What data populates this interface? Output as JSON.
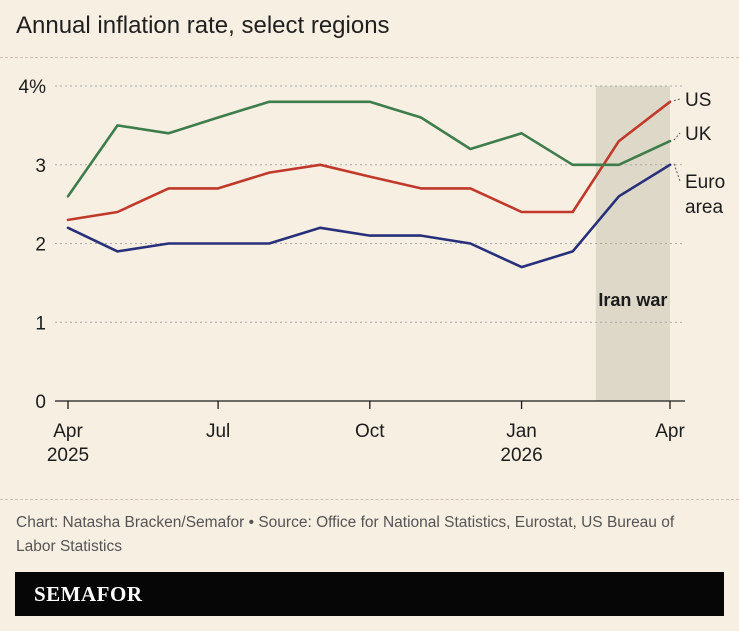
{
  "header": {
    "title": "Annual inflation rate, select regions"
  },
  "footer": {
    "caption": "Chart: Natasha Bracken/Semafor • Source: Office for National Statistics, Eurostat, US Bureau of Labor Statistics",
    "brand": "SEMAFOR"
  },
  "colors": {
    "background": "#f8efe3",
    "US": "#c0392b",
    "UK": "#3e7d4b",
    "Euro area": "#27307a",
    "shade": "#ddd8c8"
  },
  "chart_data": {
    "type": "line",
    "x": [
      "2025-04",
      "2025-05",
      "2025-06",
      "2025-07",
      "2025-08",
      "2025-09",
      "2025-10",
      "2025-11",
      "2025-12",
      "2026-01",
      "2026-02",
      "2026-03",
      "2026-04"
    ],
    "x_ticks": [
      {
        "x": "2025-04",
        "line1": "Apr",
        "line2": "2025"
      },
      {
        "x": "2025-07",
        "line1": "Jul",
        "line2": ""
      },
      {
        "x": "2025-10",
        "line1": "Oct",
        "line2": ""
      },
      {
        "x": "2026-01",
        "line1": "Jan",
        "line2": "2026"
      },
      {
        "x": "2026-04",
        "line1": "Apr",
        "line2": ""
      }
    ],
    "y_ticks": [
      "0",
      "1",
      "2",
      "3",
      "4%"
    ],
    "ylim": [
      0,
      4
    ],
    "grid": true,
    "series": [
      {
        "name": "US",
        "label_lines": [
          "US"
        ],
        "values": [
          2.3,
          2.4,
          2.7,
          2.7,
          2.9,
          3.0,
          2.85,
          2.7,
          2.7,
          2.4,
          2.4,
          3.3,
          3.8
        ]
      },
      {
        "name": "UK",
        "label_lines": [
          "UK"
        ],
        "values": [
          2.6,
          3.5,
          3.4,
          3.6,
          3.8,
          3.8,
          3.8,
          3.6,
          3.2,
          3.4,
          3.0,
          3.0,
          3.3
        ]
      },
      {
        "name": "Euro area",
        "label_lines": [
          "Euro",
          "area"
        ],
        "values": [
          2.2,
          1.9,
          2.0,
          2.0,
          2.0,
          2.2,
          2.1,
          2.1,
          2.0,
          1.7,
          1.9,
          2.6,
          3.0
        ]
      }
    ],
    "shaded_period": {
      "label": "Iran war",
      "from": "2026-02-15",
      "to": "2026-04-01"
    }
  }
}
